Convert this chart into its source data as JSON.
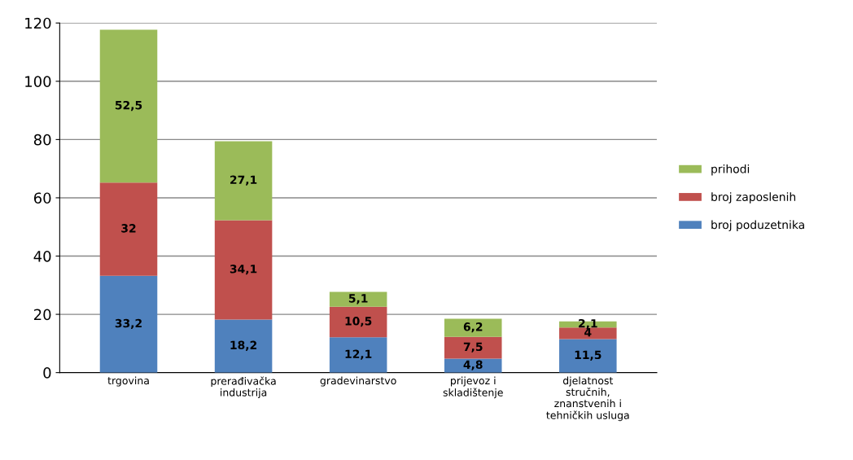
{
  "chart_data": {
    "type": "bar",
    "stacked": true,
    "categories": [
      "trgovina",
      "prerađivačka\nindustrija",
      "gradevinarstvo",
      "prijevoz i\nskladištenje",
      "djelatnost\nstručnih,\nznanstvenih i\ntehničkih usluga"
    ],
    "series": [
      {
        "name": "broj poduzetnika",
        "color": "#4f81bd",
        "values": [
          33.2,
          18.2,
          12.1,
          4.8,
          11.5
        ],
        "value_labels": [
          "33,2",
          "18,2",
          "12,1",
          "4,8",
          "11,5"
        ]
      },
      {
        "name": "broj zaposlenih",
        "color": "#c0504d",
        "values": [
          32,
          34.1,
          10.5,
          7.5,
          4
        ],
        "value_labels": [
          "32",
          "34,1",
          "10,5",
          "7,5",
          "4"
        ]
      },
      {
        "name": "prihodi",
        "color": "#9bbb59",
        "values": [
          52.5,
          27.1,
          5.1,
          6.2,
          2.1
        ],
        "value_labels": [
          "52,5",
          "27,1",
          "5,1",
          "6,2",
          "2,1"
        ]
      }
    ],
    "ylim": [
      0,
      120
    ],
    "yticks": [
      0,
      20,
      40,
      60,
      80,
      100,
      120
    ],
    "grid": "y",
    "legend": "right"
  }
}
